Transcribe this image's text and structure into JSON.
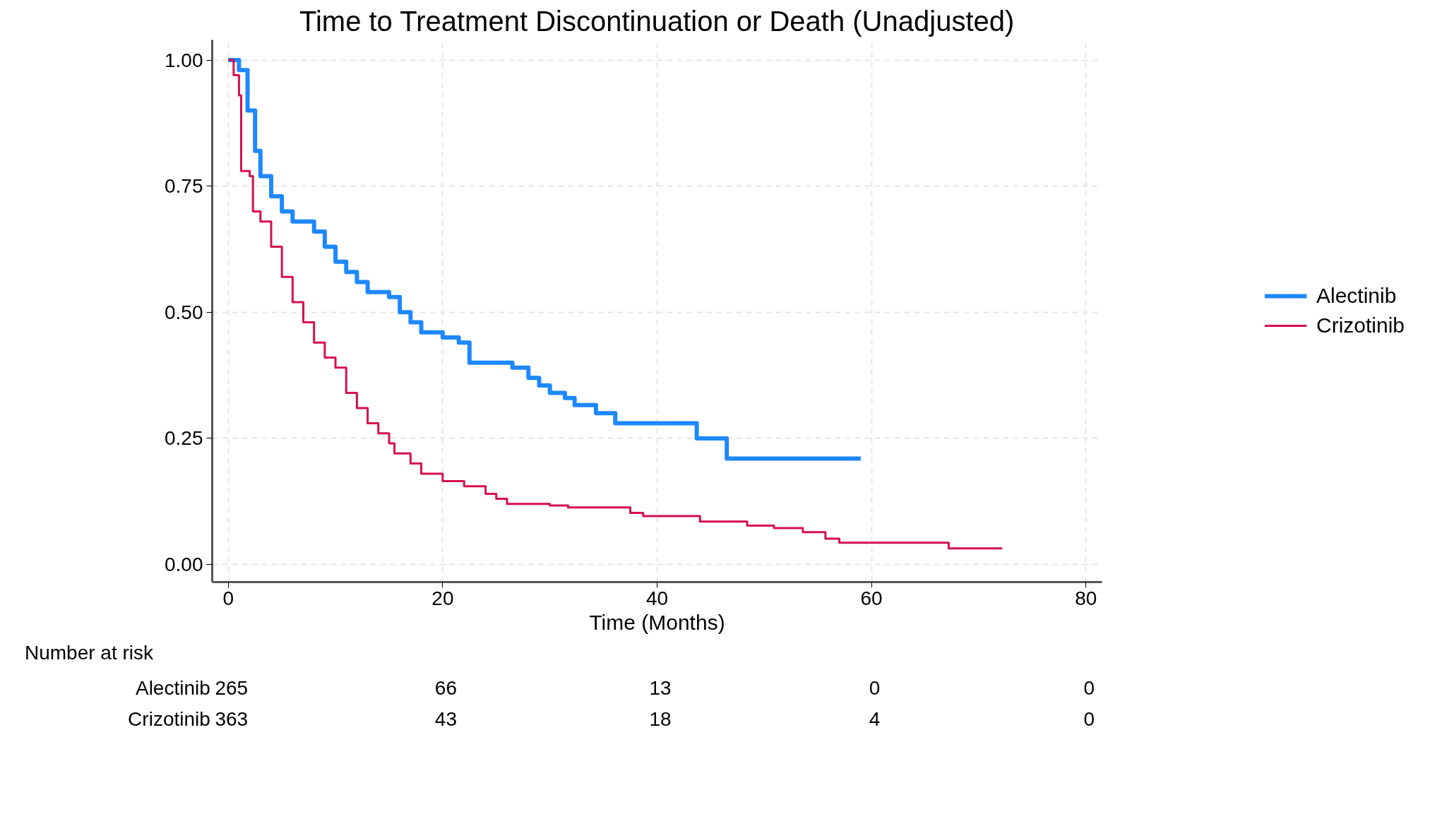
{
  "chart_data": {
    "type": "step",
    "title": "Time to Treatment Discontinuation or Death (Unadjusted)",
    "xlabel": "Time (Months)",
    "xlim": [
      -1.5,
      81.5
    ],
    "ylim": [
      -0.035,
      1.04
    ],
    "xticks": [
      0,
      20,
      40,
      60,
      80
    ],
    "yticks": [
      {
        "value": 0,
        "label": "0.00"
      },
      {
        "value": 0.25,
        "label": "0.25"
      },
      {
        "value": 0.5,
        "label": "0.50"
      },
      {
        "value": 0.75,
        "label": "0.75"
      },
      {
        "value": 1,
        "label": "1.00"
      }
    ],
    "grid": true,
    "legend": "right",
    "line_style": "solid",
    "series": [
      {
        "name": "Alectinib",
        "color": "#1e88ff",
        "x": [
          0,
          1,
          1.8,
          2.5,
          3,
          4,
          5,
          6,
          8,
          9,
          10,
          11,
          12,
          13,
          15,
          16,
          17,
          18,
          20,
          21.5,
          22.5,
          26.5,
          28,
          29,
          30,
          31.4,
          32.3,
          34.3,
          36.1,
          43.7,
          46.5,
          59
        ],
        "values": [
          1.0,
          0.98,
          0.9,
          0.82,
          0.77,
          0.73,
          0.7,
          0.68,
          0.66,
          0.63,
          0.6,
          0.58,
          0.56,
          0.54,
          0.53,
          0.5,
          0.48,
          0.46,
          0.45,
          0.44,
          0.4,
          0.39,
          0.37,
          0.355,
          0.34,
          0.33,
          0.316,
          0.3,
          0.28,
          0.25,
          0.21,
          0.21
        ]
      },
      {
        "name": "Crizotinib",
        "color": "#d6104f",
        "x": [
          0,
          0.5,
          1,
          1.2,
          2,
          2.3,
          3,
          4,
          5,
          6,
          7,
          8,
          9,
          10,
          11,
          12,
          13,
          14,
          15,
          15.5,
          17,
          18,
          20,
          22,
          24,
          25,
          26,
          30,
          31.7,
          37.5,
          38.7,
          44,
          48.4,
          50.9,
          53.6,
          55.7,
          57,
          67.2,
          72.2
        ],
        "values": [
          1.0,
          0.97,
          0.93,
          0.78,
          0.77,
          0.7,
          0.68,
          0.63,
          0.57,
          0.52,
          0.48,
          0.44,
          0.41,
          0.39,
          0.34,
          0.31,
          0.28,
          0.26,
          0.24,
          0.22,
          0.2,
          0.18,
          0.165,
          0.155,
          0.14,
          0.13,
          0.12,
          0.117,
          0.113,
          0.102,
          0.096,
          0.085,
          0.077,
          0.072,
          0.064,
          0.051,
          0.043,
          0.032,
          0.032
        ]
      }
    ],
    "annotations": [
      "Number at risk",
      "Alectinib",
      "265",
      "66",
      "13",
      "0",
      "0",
      "Crizotinib",
      "363",
      "43",
      "18",
      "4",
      "0"
    ]
  }
}
